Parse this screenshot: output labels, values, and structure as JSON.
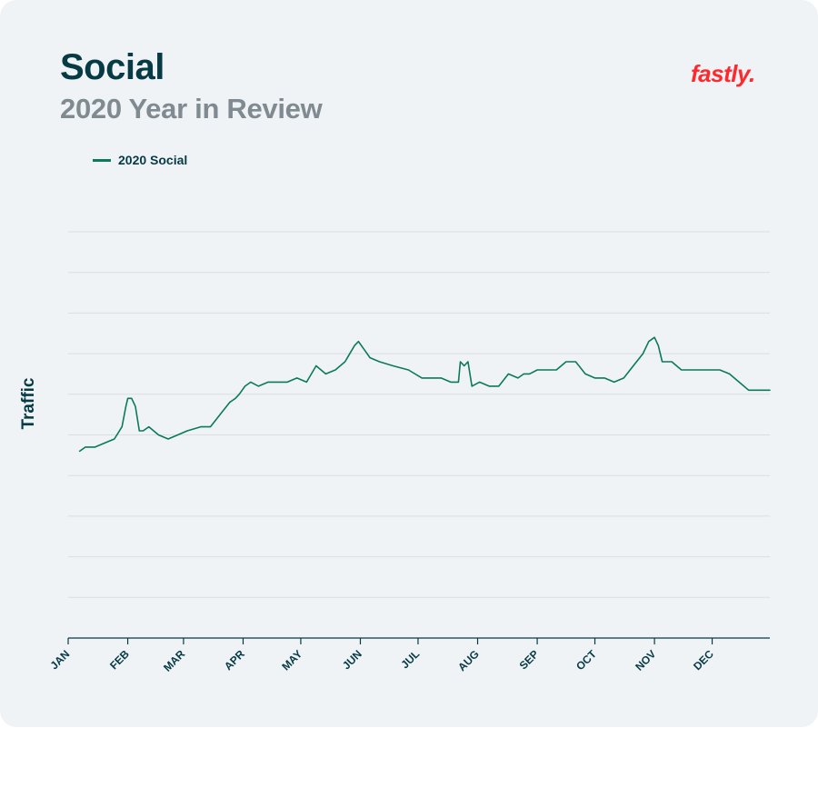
{
  "header": {
    "title": "Social",
    "subtitle": "2020 Year in Review",
    "brand": "fastly."
  },
  "colors": {
    "line": "#0a7a5a",
    "title": "#063a45",
    "subtitle": "#808a91",
    "brand": "#ff282d",
    "grid": "#d9dde2",
    "background": "#f0f3f6"
  },
  "chart_data": {
    "type": "line",
    "title": "Social",
    "subtitle": "2020 Year in Review",
    "xlabel": "",
    "ylabel": "Traffic",
    "y_tick_labels_shown": false,
    "grid": "horizontal",
    "legend_position": "top-left",
    "x_ticks": [
      "JAN",
      "FEB",
      "MAR",
      "APR",
      "MAY",
      "JUN",
      "JUL",
      "AUG",
      "SEP",
      "OCT",
      "NOV",
      "DEC"
    ],
    "ylim": [
      0,
      10
    ],
    "series": [
      {
        "name": "2020 Social",
        "color": "#0a7a5a",
        "x_day_of_year": [
          7,
          10,
          15,
          20,
          25,
          29,
          31,
          32,
          34,
          36,
          38,
          40,
          43,
          48,
          53,
          58,
          63,
          70,
          75,
          80,
          85,
          88,
          90,
          93,
          96,
          100,
          105,
          110,
          115,
          120,
          125,
          130,
          135,
          140,
          145,
          150,
          152,
          155,
          158,
          163,
          170,
          178,
          185,
          190,
          195,
          200,
          204,
          205,
          207,
          209,
          211,
          215,
          220,
          225,
          230,
          235,
          238,
          241,
          245,
          250,
          255,
          260,
          265,
          270,
          275,
          280,
          285,
          290,
          295,
          300,
          303,
          306,
          308,
          310,
          315,
          320,
          325,
          330,
          335,
          340,
          345,
          350,
          355,
          358,
          362,
          366
        ],
        "values": [
          4.6,
          4.7,
          4.7,
          4.8,
          4.9,
          5.2,
          5.7,
          5.9,
          5.9,
          5.7,
          5.1,
          5.1,
          5.2,
          5.0,
          4.9,
          5.0,
          5.1,
          5.2,
          5.2,
          5.5,
          5.8,
          5.9,
          6.0,
          6.2,
          6.3,
          6.2,
          6.3,
          6.3,
          6.3,
          6.4,
          6.3,
          6.7,
          6.5,
          6.6,
          6.8,
          7.2,
          7.3,
          7.1,
          6.9,
          6.8,
          6.7,
          6.6,
          6.4,
          6.4,
          6.4,
          6.3,
          6.3,
          6.8,
          6.7,
          6.8,
          6.2,
          6.3,
          6.2,
          6.2,
          6.5,
          6.4,
          6.5,
          6.5,
          6.6,
          6.6,
          6.6,
          6.8,
          6.8,
          6.5,
          6.4,
          6.4,
          6.3,
          6.4,
          6.7,
          7.0,
          7.3,
          7.4,
          7.2,
          6.8,
          6.8,
          6.6,
          6.6,
          6.6,
          6.6,
          6.6,
          6.5,
          6.3,
          6.1,
          6.1,
          6.1,
          6.1
        ]
      }
    ]
  }
}
